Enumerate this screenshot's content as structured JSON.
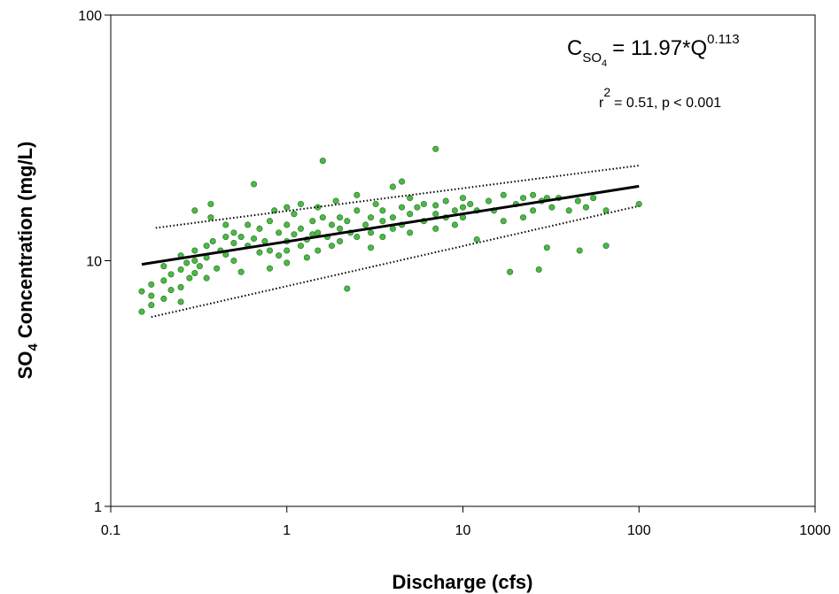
{
  "chart_data": {
    "type": "scatter",
    "xlabel": "Discharge (cfs)",
    "ylabel": {
      "main": "SO",
      "sub": "4",
      "rest": " Concentration (mg/L)"
    },
    "equation": {
      "lhs": "C",
      "lhs_sub": "SO",
      "lhs_subsub": "4",
      "rhs": "= 11.97*Q",
      "exp": "0.113"
    },
    "stats": {
      "r": "r",
      "r_exp": "2",
      "rest": "= 0.51, p < 0.001"
    },
    "xscale": "log",
    "yscale": "log",
    "xlim": [
      0.1,
      1000
    ],
    "ylim": [
      1,
      100
    ],
    "xticks": [
      0.1,
      1,
      10,
      100,
      1000
    ],
    "yticks": [
      1,
      10,
      100
    ],
    "series": [
      {
        "style": "points",
        "color": "#4cb847",
        "x": [
          0.15,
          0.15,
          0.17,
          0.17,
          0.17,
          0.2,
          0.2,
          0.2,
          0.22,
          0.22,
          0.25,
          0.25,
          0.25,
          0.25,
          0.27,
          0.28,
          0.3,
          0.3,
          0.3,
          0.3,
          0.32,
          0.35,
          0.35,
          0.35,
          0.37,
          0.37,
          0.38,
          0.4,
          0.42,
          0.45,
          0.45,
          0.45,
          0.5,
          0.5,
          0.5,
          0.55,
          0.55,
          0.6,
          0.6,
          0.65,
          0.65,
          0.7,
          0.7,
          0.75,
          0.8,
          0.8,
          0.8,
          0.85,
          0.9,
          0.9,
          1,
          1,
          1,
          1,
          1,
          1.1,
          1.1,
          1.2,
          1.2,
          1.2,
          1.3,
          1.3,
          1.4,
          1.4,
          1.5,
          1.5,
          1.5,
          1.6,
          1.6,
          1.7,
          1.8,
          1.8,
          1.9,
          2,
          2,
          2,
          2.2,
          2.2,
          2.3,
          2.5,
          2.5,
          2.5,
          2.8,
          3,
          3,
          3,
          3.2,
          3.5,
          3.5,
          3.5,
          4,
          4,
          4,
          4.5,
          4.5,
          4.5,
          5,
          5,
          5,
          5.5,
          6,
          6,
          7,
          7,
          7,
          7,
          8,
          8,
          9,
          9,
          10,
          10,
          10,
          11,
          12,
          12,
          14,
          15,
          17,
          17,
          18.5,
          20,
          22,
          22,
          25,
          25,
          27,
          28,
          30,
          30,
          32,
          35,
          40,
          45,
          46,
          50,
          55,
          65,
          65,
          100
        ],
        "values": [
          7.5,
          6.2,
          8,
          6.6,
          7.2,
          9.5,
          8.3,
          7,
          8.8,
          7.6,
          10.5,
          9.2,
          7.8,
          6.8,
          9.8,
          8.5,
          11,
          10,
          8.9,
          16,
          9.5,
          11.5,
          10.3,
          8.5,
          17,
          15,
          12,
          9.3,
          11,
          12.5,
          10.6,
          14,
          11.8,
          10,
          13,
          12.5,
          9,
          11.5,
          14,
          20.5,
          12.3,
          10.8,
          13.5,
          12,
          14.5,
          11,
          9.3,
          16,
          13,
          10.5,
          12,
          14,
          11,
          16.5,
          9.8,
          12.8,
          15.5,
          11.5,
          13.5,
          17,
          12.2,
          10.3,
          14.5,
          12.8,
          13,
          16.5,
          11,
          25.5,
          15,
          12.5,
          14,
          11.5,
          17.5,
          13.5,
          15,
          12,
          7.7,
          14.5,
          13,
          16,
          12.5,
          18.5,
          14,
          15,
          13,
          11.3,
          17,
          14.5,
          16,
          12.5,
          20,
          15,
          13.5,
          21,
          16.5,
          14,
          15.5,
          18,
          13,
          16.5,
          14.5,
          17,
          28.5,
          15.5,
          16.8,
          13.5,
          17.5,
          15,
          16,
          14,
          16.5,
          18,
          15,
          17,
          12.2,
          16,
          17.5,
          16,
          18.5,
          14.5,
          9,
          17,
          18,
          15,
          18.5,
          16,
          9.2,
          17.5,
          11.3,
          18,
          16.5,
          18,
          16,
          17.5,
          11,
          16.5,
          18,
          11.5,
          16,
          17
        ]
      },
      {
        "style": "solid",
        "color": "#000000",
        "x": [
          0.15,
          100
        ],
        "values": [
          9.66,
          20.1
        ]
      },
      {
        "style": "dotted",
        "color": "#000000",
        "x": [
          0.18,
          100
        ],
        "values": [
          13.6,
          24.4
        ]
      },
      {
        "style": "dotted",
        "color": "#000000",
        "x": [
          0.17,
          100
        ],
        "values": [
          5.9,
          16.7
        ]
      }
    ]
  }
}
